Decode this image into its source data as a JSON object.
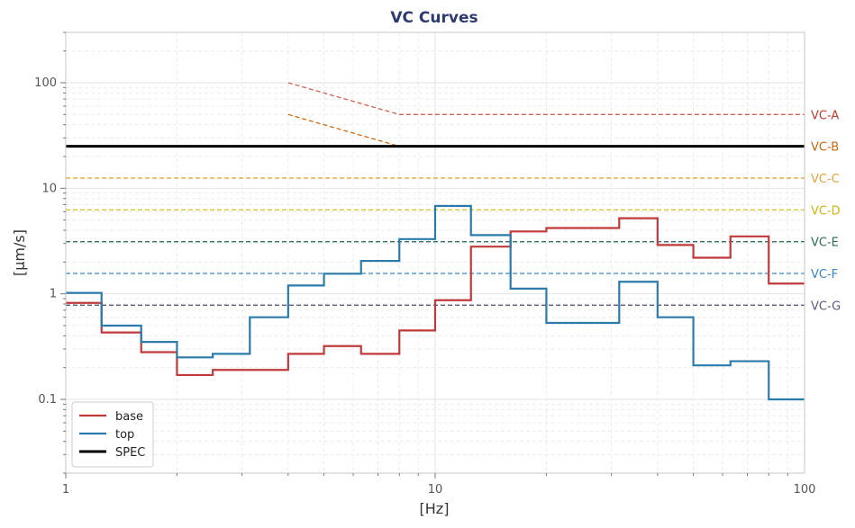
{
  "chart_data": {
    "type": "line",
    "title": "VC Curves",
    "xlabel": "[Hz]",
    "ylabel": "[µm/s]",
    "xscale": "log",
    "yscale": "log",
    "xlim": [
      1,
      100
    ],
    "ylim": [
      0.02,
      300
    ],
    "x_ticks": [
      {
        "v": 1,
        "label": "1"
      },
      {
        "v": 10,
        "label": "10"
      },
      {
        "v": 100,
        "label": "100"
      }
    ],
    "y_ticks": [
      {
        "v": 0.1,
        "label": "0.1"
      },
      {
        "v": 1,
        "label": "1"
      },
      {
        "v": 10,
        "label": "10"
      },
      {
        "v": 100,
        "label": "100"
      }
    ],
    "grid": true,
    "legend_position": "bottom-left",
    "series": [
      {
        "name": "base",
        "color": "#c0393b",
        "style": "step",
        "x": [
          1,
          1.25,
          1.6,
          2,
          2.5,
          3.15,
          4,
          5,
          6.3,
          8,
          10,
          12.5,
          16,
          20,
          25,
          31.5,
          40,
          50,
          63,
          80,
          100
        ],
        "y": [
          0.82,
          0.43,
          0.28,
          0.17,
          0.19,
          0.19,
          0.27,
          0.32,
          0.27,
          0.45,
          0.87,
          2.8,
          3.9,
          4.2,
          4.2,
          5.2,
          2.9,
          2.2,
          3.5,
          1.25,
          1.25
        ]
      },
      {
        "name": "top",
        "color": "#2a7bab",
        "style": "step",
        "x": [
          1,
          1.25,
          1.6,
          2,
          2.5,
          3.15,
          4,
          5,
          6.3,
          8,
          10,
          12.5,
          16,
          20,
          25,
          31.5,
          40,
          50,
          63,
          80,
          100
        ],
        "y": [
          1.02,
          0.5,
          0.35,
          0.25,
          0.27,
          0.6,
          1.2,
          1.55,
          2.05,
          3.3,
          6.8,
          3.6,
          1.12,
          0.53,
          0.53,
          1.3,
          0.6,
          0.21,
          0.23,
          0.1,
          0.1
        ]
      },
      {
        "name": "SPEC",
        "color": "#000000",
        "style": "hline",
        "y": 25
      }
    ],
    "vc_curves": [
      {
        "label": "VC-A",
        "color": "#cd6155",
        "x": [
          4,
          8,
          100
        ],
        "y": [
          100,
          50,
          50
        ]
      },
      {
        "label": "VC-B",
        "color": "#d4690f",
        "x": [
          4,
          8,
          100
        ],
        "y": [
          50,
          25,
          25
        ]
      },
      {
        "label": "VC-C",
        "color": "#e8a33a",
        "x": [
          1,
          100
        ],
        "y": [
          12.5,
          12.5
        ]
      },
      {
        "label": "VC-D",
        "color": "#d4c21a",
        "x": [
          1,
          100
        ],
        "y": [
          6.25,
          6.25
        ]
      },
      {
        "label": "VC-E",
        "color": "#2e7064",
        "x": [
          1,
          100
        ],
        "y": [
          3.12,
          3.12
        ]
      },
      {
        "label": "VC-F",
        "color": "#3a86c4",
        "x": [
          1,
          100
        ],
        "y": [
          1.56,
          1.56
        ]
      },
      {
        "label": "VC-G",
        "color": "#5a5d7c",
        "x": [
          1,
          100
        ],
        "y": [
          0.78,
          0.78
        ]
      }
    ],
    "vc_label_colors": {
      "VC-A": "#c0392b",
      "VC-B": "#c9660a",
      "VC-C": "#e8a33a",
      "VC-D": "#c9b613",
      "VC-E": "#2e6a5e",
      "VC-F": "#3a86c4",
      "VC-G": "#5a5d7c"
    },
    "colors": {
      "title": "#2d3a6e",
      "axis": "#c7c7c7",
      "grid": "#ececec"
    }
  }
}
